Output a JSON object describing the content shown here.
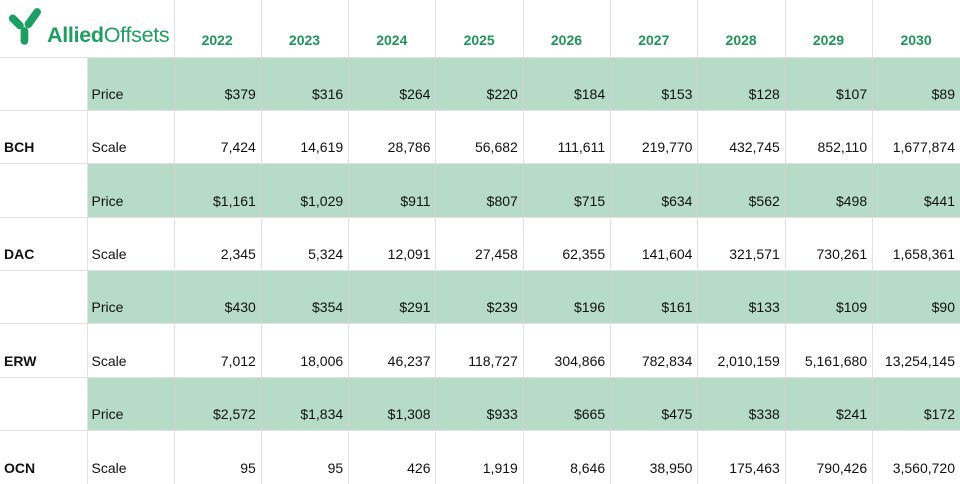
{
  "brand": {
    "name_bold": "Allied",
    "name_regular": "Offsets",
    "logo_icon": "y-branches-icon"
  },
  "colors": {
    "brand_green": "#1e9e62",
    "header_text_green": "#21945b",
    "price_row_highlight": "#b6dbc6",
    "grid_line": "#e2e2e3"
  },
  "columns": {
    "years": [
      "2022",
      "2023",
      "2024",
      "2025",
      "2026",
      "2027",
      "2028",
      "2029",
      "2030"
    ]
  },
  "row_labels": {
    "price": "Price",
    "scale": "Scale"
  },
  "groups": [
    {
      "code": "BCH",
      "price": [
        "$379",
        "$316",
        "$264",
        "$220",
        "$184",
        "$153",
        "$128",
        "$107",
        "$89"
      ],
      "scale": [
        "7,424",
        "14,619",
        "28,786",
        "56,682",
        "111,611",
        "219,770",
        "432,745",
        "852,110",
        "1,677,874"
      ]
    },
    {
      "code": "DAC",
      "price": [
        "$1,161",
        "$1,029",
        "$911",
        "$807",
        "$715",
        "$634",
        "$562",
        "$498",
        "$441"
      ],
      "scale": [
        "2,345",
        "5,324",
        "12,091",
        "27,458",
        "62,355",
        "141,604",
        "321,571",
        "730,261",
        "1,658,361"
      ]
    },
    {
      "code": "ERW",
      "price": [
        "$430",
        "$354",
        "$291",
        "$239",
        "$196",
        "$161",
        "$133",
        "$109",
        "$90"
      ],
      "scale": [
        "7,012",
        "18,006",
        "46,237",
        "118,727",
        "304,866",
        "782,834",
        "2,010,159",
        "5,161,680",
        "13,254,145"
      ]
    },
    {
      "code": "OCN",
      "price": [
        "$2,572",
        "$1,834",
        "$1,308",
        "$933",
        "$665",
        "$475",
        "$338",
        "$241",
        "$172"
      ],
      "scale": [
        "95",
        "95",
        "426",
        "1,919",
        "8,646",
        "38,950",
        "175,463",
        "790,426",
        "3,560,720"
      ]
    }
  ]
}
